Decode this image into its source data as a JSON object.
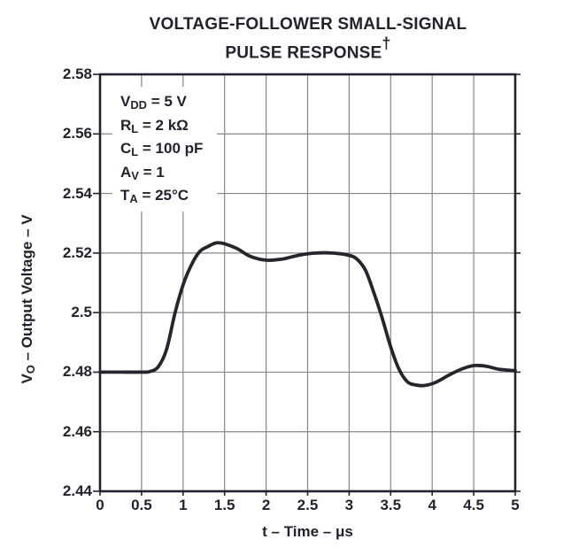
{
  "figure": {
    "title_line1": "VOLTAGE-FOLLOWER SMALL-SIGNAL",
    "title_line2": "PULSE RESPONSE",
    "title_dagger": "†"
  },
  "conditions": [
    {
      "base": "V",
      "sub": "DD",
      "rest": " = 5 V"
    },
    {
      "base": "R",
      "sub": "L",
      "rest": " = 2 kΩ"
    },
    {
      "base": "C",
      "sub": "L",
      "rest": " = 100 pF"
    },
    {
      "base": "A",
      "sub": "V",
      "rest": " = 1"
    },
    {
      "base": "T",
      "sub": "A",
      "rest": " = 25°C"
    }
  ],
  "axes": {
    "y_title": {
      "base": "V",
      "sub": "O",
      "rest": " – Output Voltage – V"
    },
    "x_title": "t – Time – μs"
  },
  "chart_data": {
    "type": "line",
    "title": "VOLTAGE-FOLLOWER SMALL-SIGNAL PULSE RESPONSE†",
    "xlabel": "t – Time – μs",
    "ylabel": "VO – Output Voltage – V",
    "xlim": [
      0,
      5
    ],
    "ylim": [
      2.44,
      2.58
    ],
    "x_ticks": [
      0,
      0.5,
      1,
      1.5,
      2,
      2.5,
      3,
      3.5,
      4,
      4.5,
      5
    ],
    "x_tick_labels": [
      "0",
      "0.5",
      "1",
      "1.5",
      "2",
      "2.5",
      "3",
      "3.5",
      "4",
      "4.5",
      "5"
    ],
    "y_ticks": [
      2.44,
      2.46,
      2.48,
      2.5,
      2.52,
      2.54,
      2.56,
      2.58
    ],
    "y_tick_labels": [
      "2.44",
      "2.46",
      "2.48",
      "2.5",
      "2.52",
      "2.54",
      "2.56",
      "2.58"
    ],
    "grid": true,
    "legend": "none",
    "annotations": [
      "VDD = 5 V",
      "RL = 2 kΩ",
      "CL = 100 pF",
      "AV = 1",
      "TA = 25°C"
    ],
    "series": [
      {
        "name": "voltage-follower small-signal pulse response",
        "points": [
          [
            0.0,
            2.48
          ],
          [
            0.25,
            2.48
          ],
          [
            0.5,
            2.48
          ],
          [
            0.6,
            2.4802
          ],
          [
            0.7,
            2.4818
          ],
          [
            0.8,
            2.4875
          ],
          [
            0.9,
            2.4995
          ],
          [
            1.0,
            2.5093
          ],
          [
            1.1,
            2.516
          ],
          [
            1.2,
            2.5205
          ],
          [
            1.3,
            2.5222
          ],
          [
            1.4,
            2.5234
          ],
          [
            1.5,
            2.5231
          ],
          [
            1.65,
            2.5215
          ],
          [
            1.8,
            2.519
          ],
          [
            2.0,
            2.5176
          ],
          [
            2.2,
            2.518
          ],
          [
            2.4,
            2.5193
          ],
          [
            2.6,
            2.52
          ],
          [
            2.8,
            2.52
          ],
          [
            3.0,
            2.5192
          ],
          [
            3.1,
            2.5178
          ],
          [
            3.2,
            2.514
          ],
          [
            3.3,
            2.5065
          ],
          [
            3.4,
            2.498
          ],
          [
            3.5,
            2.4885
          ],
          [
            3.6,
            2.481
          ],
          [
            3.7,
            2.4768
          ],
          [
            3.8,
            2.4757
          ],
          [
            3.9,
            2.4755
          ],
          [
            4.0,
            2.4761
          ],
          [
            4.1,
            2.4774
          ],
          [
            4.2,
            2.479
          ],
          [
            4.35,
            2.481
          ],
          [
            4.5,
            2.4822
          ],
          [
            4.65,
            2.482
          ],
          [
            4.8,
            2.481
          ],
          [
            5.0,
            2.4805
          ]
        ]
      }
    ],
    "colors": {
      "ink": "#232330",
      "grid": "#85858d",
      "curve": "#25252d",
      "background": "#ffffff"
    }
  }
}
